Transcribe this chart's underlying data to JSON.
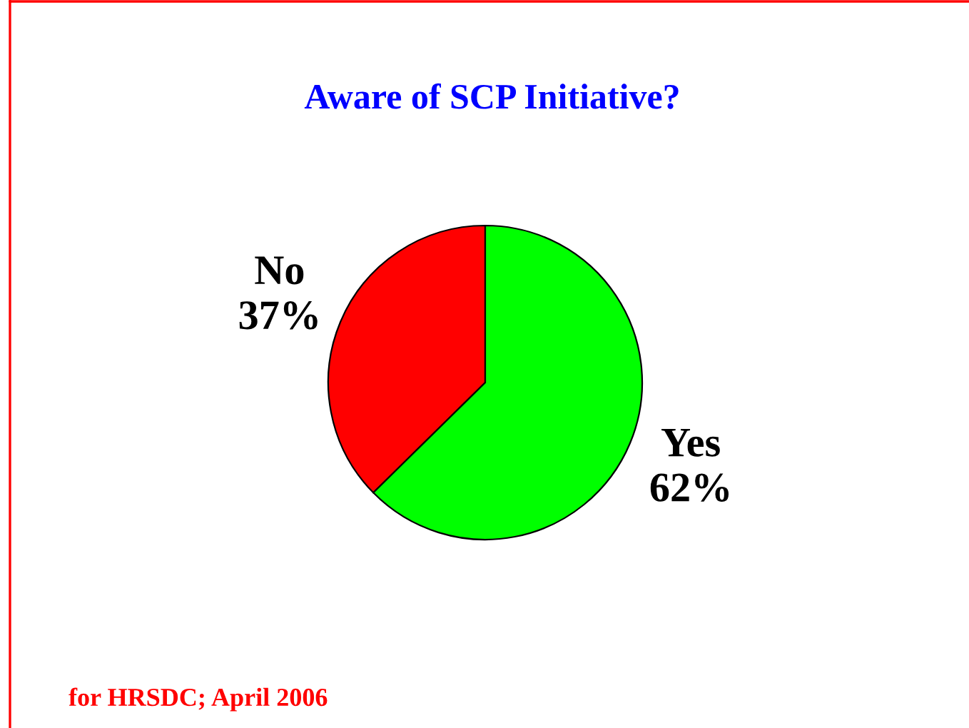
{
  "chart_data": {
    "type": "pie",
    "title": "Aware of SCP Initiative?",
    "categories": [
      "No",
      "Yes"
    ],
    "values": [
      37,
      62
    ],
    "colors": [
      "#ff0000",
      "#00ff00"
    ],
    "value_labels": [
      "37%",
      "62%"
    ],
    "annotations": [
      "for HRSDC; April 2006"
    ]
  }
}
